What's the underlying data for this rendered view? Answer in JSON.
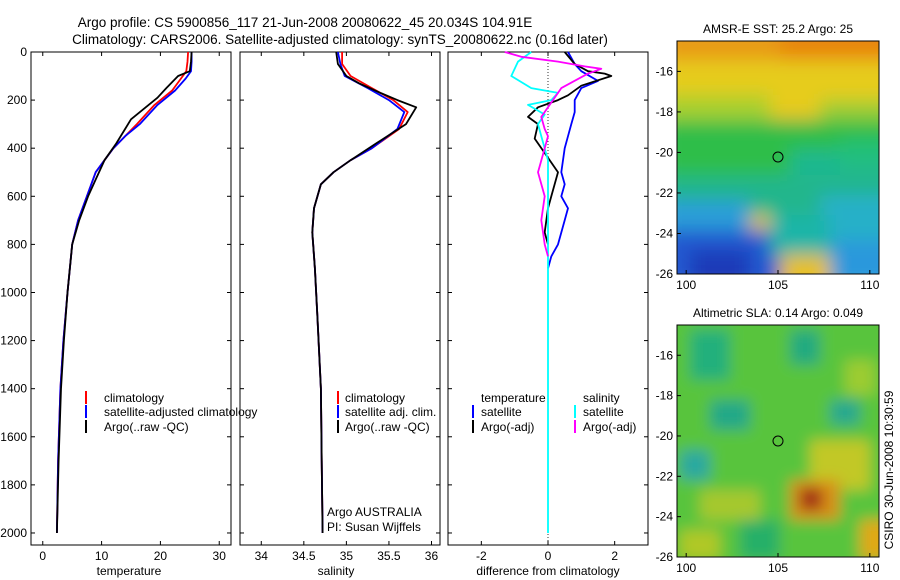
{
  "title": {
    "line1": "Argo profile: CS 5900856_117 21-Jun-2008 20080622_45 20.034S 104.91E",
    "line2": "Climatology: CARS2006. Satellite-adjusted climatology: synTS_20080622.nc (0.16d later)"
  },
  "side_text": "CSIRO 30-Jun-2008 10:30:59",
  "credit": {
    "line1": "Argo AUSTRALIA",
    "line2": "PI: Susan Wijffels"
  },
  "colors": {
    "climatology": "#ff0000",
    "satellite": "#0000ff",
    "argo": "#000000",
    "sat_diff_sal": "#00ffff",
    "argo_diff_sal": "#ff00ff"
  },
  "chart_data": [
    {
      "id": "temperature",
      "type": "line",
      "xlabel": "temperature",
      "ylabel": "",
      "xlim": [
        -2,
        32
      ],
      "ylim": [
        2050,
        0
      ],
      "xticks": [
        0,
        10,
        20,
        30
      ],
      "yticks": [
        0,
        200,
        400,
        600,
        800,
        1000,
        1200,
        1400,
        1600,
        1800,
        2000
      ],
      "legend_placement": "center-bottom",
      "series": [
        {
          "name": "climatology",
          "color": "#ff0000",
          "x": [
            24.7,
            24.6,
            24.4,
            23.5,
            22,
            19,
            16,
            14,
            12,
            10.5,
            9,
            7.5,
            6,
            5,
            4.2,
            3.5,
            3.0,
            2.6,
            2.4
          ],
          "y": [
            0,
            40,
            80,
            110,
            160,
            220,
            300,
            350,
            400,
            450,
            500,
            600,
            700,
            800,
            1000,
            1200,
            1400,
            1700,
            2000
          ]
        },
        {
          "name": "satellite-adjusted climatology",
          "color": "#0000ff",
          "x": [
            25.3,
            25.3,
            25.2,
            24.3,
            22.5,
            19.5,
            16.5,
            14,
            12,
            10.5,
            9,
            7.5,
            6,
            5,
            4.2,
            3.5,
            3.0,
            2.6,
            2.4
          ],
          "y": [
            0,
            40,
            80,
            110,
            160,
            220,
            300,
            350,
            400,
            450,
            500,
            600,
            700,
            800,
            1000,
            1200,
            1400,
            1700,
            2000
          ]
        },
        {
          "name": "Argo(..raw -QC)",
          "color": "#000000",
          "x": [
            25.3,
            25.2,
            25.0,
            23.0,
            21,
            19.5,
            17,
            15,
            14,
            12.5,
            10.5,
            9,
            7.7,
            6.2,
            5,
            4.2,
            3.6,
            3.1,
            2.7,
            2.4
          ],
          "y": [
            0,
            40,
            80,
            100,
            150,
            190,
            240,
            280,
            320,
            380,
            450,
            530,
            600,
            700,
            800,
            1000,
            1200,
            1400,
            1700,
            2000
          ]
        }
      ]
    },
    {
      "id": "salinity",
      "type": "line",
      "xlabel": "salinity",
      "ylabel": "",
      "xlim": [
        33.75,
        36.1
      ],
      "ylim": [
        2050,
        0
      ],
      "xticks": [
        34,
        34.5,
        35,
        35.5,
        36
      ],
      "xticklabels": [
        "34",
        "34.5",
        "35",
        "35.5",
        "36"
      ],
      "yticks": [
        0,
        200,
        400,
        600,
        800,
        1000,
        1200,
        1400,
        1600,
        1800,
        2000
      ],
      "legend_placement": "center-bottom",
      "series": [
        {
          "name": "climatology",
          "color": "#ff0000",
          "x": [
            34.95,
            34.95,
            35.05,
            35.3,
            35.55,
            35.72,
            35.62,
            35.3,
            35.05,
            34.85,
            34.7,
            34.62,
            34.6,
            34.63,
            34.66,
            34.7,
            34.71,
            34.72
          ],
          "y": [
            0,
            50,
            100,
            150,
            200,
            250,
            320,
            400,
            450,
            500,
            550,
            650,
            750,
            900,
            1100,
            1400,
            1700,
            2000
          ]
        },
        {
          "name": "satellite adj. clim.",
          "color": "#0000ff",
          "x": [
            34.9,
            34.93,
            34.98,
            35.25,
            35.5,
            35.68,
            35.6,
            35.3,
            35.05,
            34.85,
            34.7,
            34.62,
            34.6,
            34.63,
            34.66,
            34.7,
            34.71,
            34.72
          ],
          "y": [
            0,
            50,
            100,
            150,
            200,
            250,
            320,
            400,
            450,
            500,
            550,
            650,
            750,
            900,
            1100,
            1400,
            1700,
            2000
          ]
        },
        {
          "name": "Argo(..raw -QC)",
          "color": "#000000",
          "x": [
            34.88,
            34.9,
            35.0,
            35.15,
            35.4,
            35.6,
            35.82,
            35.7,
            35.35,
            35.05,
            34.85,
            34.7,
            34.62,
            34.6,
            34.63,
            34.66,
            34.7,
            34.71,
            34.72
          ],
          "y": [
            0,
            50,
            100,
            130,
            170,
            200,
            230,
            300,
            380,
            450,
            500,
            550,
            650,
            750,
            900,
            1100,
            1400,
            1700,
            2000
          ]
        }
      ]
    },
    {
      "id": "difference",
      "type": "line",
      "xlabel": "difference from climatology",
      "ylabel": "",
      "xlim": [
        -3,
        3
      ],
      "ylim": [
        2050,
        0
      ],
      "xticks": [
        -2,
        0,
        2
      ],
      "yticks": [
        0,
        200,
        400,
        600,
        800,
        1000,
        1200,
        1400,
        1600,
        1800,
        2000
      ],
      "legend_placement": "center-bottom",
      "legend_headers": [
        "temperature",
        "salinity"
      ],
      "series": [
        {
          "name": "satellite",
          "quantity": "temperature",
          "color": "#0000ff",
          "x": [
            0.6,
            0.8,
            1.0,
            1.5,
            1.0,
            0.8,
            0.8,
            0.7,
            0.6,
            0.5,
            0.4,
            0.5,
            0.4,
            0.6,
            0.5,
            0.3,
            0.1,
            0
          ],
          "y": [
            0,
            50,
            80,
            120,
            150,
            200,
            250,
            300,
            350,
            400,
            500,
            550,
            600,
            650,
            700,
            800,
            850,
            900
          ]
        },
        {
          "name": "Argo(-adj)",
          "quantity": "temperature",
          "color": "#000000",
          "x": [
            0.5,
            0.8,
            1.2,
            1.7,
            1.9,
            1.0,
            0.6,
            0.3,
            -0.3,
            -0.6,
            -0.3,
            -0.4,
            -0.1,
            0.3,
            0.1,
            0,
            -0.1,
            0
          ],
          "y": [
            0,
            50,
            80,
            90,
            100,
            140,
            180,
            200,
            230,
            270,
            300,
            360,
            420,
            500,
            600,
            650,
            750,
            800
          ]
        },
        {
          "name": "satellite",
          "quantity": "salinity",
          "color": "#00ffff",
          "x": [
            -0.5,
            -0.9,
            -1.1,
            -0.5,
            0.3,
            0.1,
            -0.6,
            -0.1,
            -0.3,
            -0.2,
            0,
            0,
            0,
            0
          ],
          "y": [
            0,
            40,
            100,
            150,
            170,
            200,
            220,
            260,
            300,
            350,
            450,
            700,
            1200,
            2000
          ]
        },
        {
          "name": "Argo(-adj)",
          "quantity": "salinity",
          "color": "#ff00ff",
          "x": [
            -1.3,
            -0.8,
            0.3,
            1.1,
            1.6,
            1.2,
            0.4,
            0.1,
            -0.2,
            -0.1,
            0.0,
            -0.1,
            -0.3,
            -0.1,
            -0.2,
            -0.1,
            0
          ],
          "y": [
            0,
            20,
            40,
            60,
            70,
            90,
            150,
            210,
            270,
            320,
            350,
            400,
            500,
            600,
            700,
            800,
            850
          ]
        }
      ]
    },
    {
      "id": "sst_map",
      "type": "heatmap",
      "title": "AMSR-E SST: 25.2 Argo: 25",
      "xlim": [
        99.5,
        110.5
      ],
      "ylim": [
        -26,
        -14.5
      ],
      "xticks": [
        100,
        105,
        110
      ],
      "yticks": [
        -16,
        -18,
        -20,
        -22,
        -24,
        -26
      ],
      "marker": {
        "lon": 104.91,
        "lat": -20.034
      }
    },
    {
      "id": "sla_map",
      "type": "heatmap",
      "title": "Altimetric SLA: 0.14 Argo: 0.049",
      "xlim": [
        99.5,
        110.5
      ],
      "ylim": [
        -26,
        -14.5
      ],
      "xticks": [
        100,
        105,
        110
      ],
      "yticks": [
        -16,
        -18,
        -20,
        -22,
        -24,
        -26
      ],
      "marker": {
        "lon": 104.91,
        "lat": -20.034
      }
    }
  ]
}
